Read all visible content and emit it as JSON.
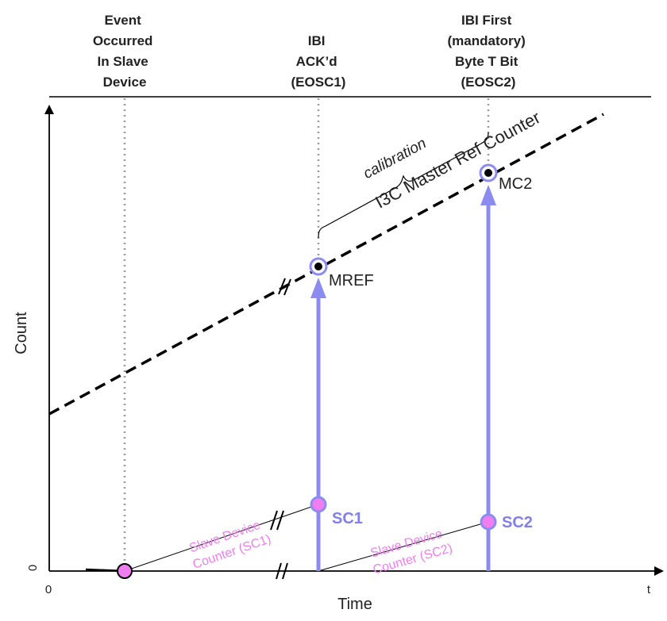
{
  "headers": {
    "event": [
      "Event",
      "Occurred",
      "In Slave",
      "Device"
    ],
    "ibi_ack": [
      "IBI",
      "ACK’d",
      "(EOSC1)"
    ],
    "ibi_first": [
      "IBI First",
      "(mandatory)",
      "Byte T Bit",
      "(EOSC2)"
    ]
  },
  "axes": {
    "y_label": "Count",
    "x_label": "Time",
    "origin_x": "0",
    "origin_y": "0",
    "x_end": "t"
  },
  "labels": {
    "master_counter": "I3C Master Ref Counter",
    "calibration": "calibration",
    "mref": "MREF",
    "mc2": "MC2",
    "sc1": "SC1",
    "sc2": "SC2",
    "slave_counter_sc1": [
      "Slave Device",
      "Counter (SC1)"
    ],
    "slave_counter_sc2": [
      "Slave Device",
      "Counter (SC2)"
    ]
  },
  "colors": {
    "arrow": "#8c8cf0",
    "pink": "#f07ef0",
    "marker_ring": "#8c8cf0"
  }
}
